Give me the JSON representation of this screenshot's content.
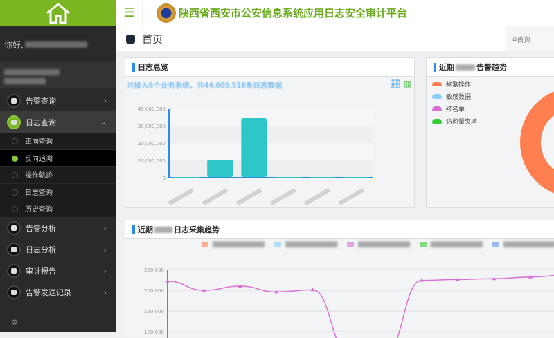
{
  "header": {
    "title": "陕西省西安市公安信息系统应用日志安全审计平台",
    "menu_icon": "hamburger-icon",
    "brand_color": "#7ab522"
  },
  "sidebar": {
    "greeting": "你好,",
    "items": [
      {
        "label": "告警查询"
      },
      {
        "label": "日志查询",
        "open": true
      },
      {
        "label": "告警分析"
      },
      {
        "label": "日志分析"
      },
      {
        "label": "审计报告"
      },
      {
        "label": "告警发送记录"
      }
    ],
    "subitems": [
      {
        "label": "正向查询"
      },
      {
        "label": "反向追溯",
        "active": true
      },
      {
        "label": "操作轨迹"
      },
      {
        "label": "日志查询"
      },
      {
        "label": "历史查询"
      }
    ]
  },
  "page": {
    "title": "首页",
    "breadcrumb": "首页"
  },
  "overview": {
    "title": "日志总览",
    "subtitle": "共接入6个业务系统，共44,605,518条日志数据"
  },
  "alarm": {
    "title_prefix": "近期",
    "title_suffix": "告警趋势",
    "legend": [
      {
        "label": "频繁操作",
        "color": "#ff7f50"
      },
      {
        "label": "敏感数据",
        "color": "#87cefa"
      },
      {
        "label": "红名单",
        "color": "#da70d6"
      },
      {
        "label": "访问量突增",
        "color": "#32cd32"
      }
    ]
  },
  "trend": {
    "title_prefix": "近期",
    "title_suffix": "日志采集趋势",
    "legend_colors": [
      "#ff7f50",
      "#87cefa",
      "#da70d6",
      "#32cd32",
      "#6495ed"
    ]
  },
  "chart_data": [
    {
      "type": "bar",
      "title": "",
      "yticks": [
        "0",
        "10,000,000",
        "20,000,000",
        "30,000,000",
        "40,000,000"
      ],
      "ylim": [
        0,
        40000000
      ],
      "categories": [
        "",
        "",
        "",
        "",
        "",
        ""
      ],
      "values": [
        0,
        10000000,
        34000000,
        0,
        0,
        0
      ],
      "color": "#2ec7c9"
    },
    {
      "type": "pie",
      "subtype": "donut",
      "series": [
        {
          "name": "频繁操作",
          "value": 100
        }
      ]
    },
    {
      "type": "line",
      "yticks": [
        "100,000",
        "150,000",
        "200,000",
        "250,000"
      ],
      "ylim": [
        100000,
        250000
      ],
      "series": [
        {
          "color": "#da70d6",
          "values": [
            222000,
            200000,
            210000,
            196000,
            201000,
            50000,
            50000,
            224000,
            226000,
            228000,
            232000,
            237000
          ]
        }
      ]
    }
  ]
}
